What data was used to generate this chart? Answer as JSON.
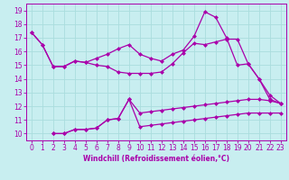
{
  "xlabel": "Windchill (Refroidissement éolien,°C)",
  "bg_color": "#c8eef0",
  "line_color": "#aa00aa",
  "grid_color": "#aadddd",
  "x_ticks": [
    0,
    1,
    2,
    3,
    4,
    5,
    6,
    7,
    8,
    9,
    10,
    11,
    12,
    13,
    14,
    15,
    16,
    17,
    18,
    19,
    20,
    21,
    22,
    23
  ],
  "y_ticks": [
    10,
    11,
    12,
    13,
    14,
    15,
    16,
    17,
    18,
    19
  ],
  "ylim": [
    9.5,
    19.5
  ],
  "xlim": [
    -0.5,
    23.5
  ],
  "line1_x": [
    0,
    1,
    2,
    3,
    4,
    5,
    6,
    7,
    8,
    9,
    10,
    11,
    12,
    13,
    14,
    15,
    16,
    17,
    18,
    19,
    20,
    21,
    22,
    23
  ],
  "line1_y": [
    17.4,
    16.5,
    14.9,
    14.9,
    15.3,
    15.2,
    15.0,
    14.9,
    14.5,
    14.4,
    14.4,
    14.4,
    14.5,
    15.1,
    15.9,
    16.6,
    16.5,
    16.7,
    16.9,
    16.9,
    15.1,
    14.0,
    12.8,
    12.2
  ],
  "line2_x": [
    0,
    1,
    2,
    3,
    4,
    5,
    6,
    7,
    8,
    9,
    10,
    11,
    12,
    13,
    14,
    15,
    16,
    17,
    18,
    19,
    20,
    21,
    22,
    23
  ],
  "line2_y": [
    17.4,
    16.5,
    14.9,
    14.9,
    15.3,
    15.2,
    15.5,
    15.8,
    16.2,
    16.5,
    15.8,
    15.5,
    15.3,
    15.8,
    16.1,
    17.1,
    18.9,
    18.5,
    17.0,
    15.0,
    15.1,
    14.0,
    12.5,
    12.2
  ],
  "line3_x": [
    2,
    3,
    4,
    5,
    6,
    7,
    8,
    9,
    10,
    11,
    12,
    13,
    14,
    15,
    16,
    17,
    18,
    19,
    20,
    21,
    22,
    23
  ],
  "line3_y": [
    10.0,
    10.0,
    10.3,
    10.3,
    10.4,
    11.0,
    11.1,
    12.5,
    11.5,
    11.6,
    11.7,
    11.8,
    11.9,
    12.0,
    12.1,
    12.2,
    12.3,
    12.4,
    12.5,
    12.5,
    12.4,
    12.2
  ],
  "line4_x": [
    2,
    3,
    4,
    5,
    6,
    7,
    8,
    9,
    10,
    11,
    12,
    13,
    14,
    15,
    16,
    17,
    18,
    19,
    20,
    21,
    22,
    23
  ],
  "line4_y": [
    10.0,
    10.0,
    10.3,
    10.3,
    10.4,
    11.0,
    11.1,
    12.5,
    10.5,
    10.6,
    10.7,
    10.8,
    10.9,
    11.0,
    11.1,
    11.2,
    11.3,
    11.4,
    11.5,
    11.5,
    11.5,
    11.5
  ],
  "tick_fontsize": 5.5,
  "xlabel_fontsize": 5.5
}
